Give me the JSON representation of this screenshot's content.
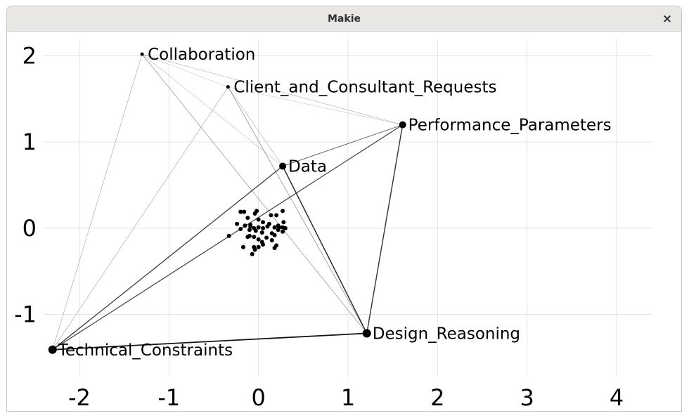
{
  "window": {
    "title": "Makie",
    "close_glyph": "×"
  },
  "chart_data": {
    "type": "scatter",
    "title": "",
    "xlabel": "",
    "ylabel": "",
    "xlim": [
      -2.4,
      4.4
    ],
    "ylim": [
      -1.73,
      2.2
    ],
    "grid": true,
    "x_ticks": [
      -2,
      -1,
      0,
      1,
      2,
      3,
      4
    ],
    "y_ticks": [
      -1,
      0,
      1,
      2
    ],
    "x_tick_labels": [
      "-2",
      "-1",
      "0",
      "1",
      "2",
      "3",
      "4"
    ],
    "y_tick_labels": [
      "-1",
      "0",
      "1",
      "2"
    ],
    "labeled_nodes": [
      {
        "label": "Collaboration",
        "x": -1.3,
        "y": 2.02,
        "size": 2.5
      },
      {
        "label": "Client_and_Consultant_Requests",
        "x": -0.34,
        "y": 1.64,
        "size": 2.5
      },
      {
        "label": "Performance_Parameters",
        "x": 1.61,
        "y": 1.2,
        "size": 5
      },
      {
        "label": "Data",
        "x": 0.27,
        "y": 0.72,
        "size": 5
      },
      {
        "label": "Design_Reasoning",
        "x": 1.21,
        "y": -1.22,
        "size": 6
      },
      {
        "label": "Technical_Constraints",
        "x": -2.3,
        "y": -1.41,
        "size": 6
      }
    ],
    "edges": [
      {
        "from": "Collaboration",
        "to": "Client_and_Consultant_Requests",
        "weight": 0.3
      },
      {
        "from": "Collaboration",
        "to": "Performance_Parameters",
        "weight": 0.4
      },
      {
        "from": "Collaboration",
        "to": "Data",
        "weight": 0.4
      },
      {
        "from": "Collaboration",
        "to": "Design_Reasoning",
        "weight": 0.55
      },
      {
        "from": "Collaboration",
        "to": "Technical_Constraints",
        "weight": 0.45
      },
      {
        "from": "Client_and_Consultant_Requests",
        "to": "Performance_Parameters",
        "weight": 0.3
      },
      {
        "from": "Client_and_Consultant_Requests",
        "to": "Data",
        "weight": 0.45
      },
      {
        "from": "Client_and_Consultant_Requests",
        "to": "Design_Reasoning",
        "weight": 0.6
      },
      {
        "from": "Client_and_Consultant_Requests",
        "to": "Technical_Constraints",
        "weight": 0.5
      },
      {
        "from": "Performance_Parameters",
        "to": "Data",
        "weight": 0.9
      },
      {
        "from": "Performance_Parameters",
        "to": "Design_Reasoning",
        "weight": 1.4
      },
      {
        "from": "Performance_Parameters",
        "to": "Technical_Constraints",
        "weight": 1.2
      },
      {
        "from": "Data",
        "to": "Design_Reasoning",
        "weight": 1.5
      },
      {
        "from": "Data",
        "to": "Technical_Constraints",
        "weight": 1.3
      },
      {
        "from": "Design_Reasoning",
        "to": "Technical_Constraints",
        "weight": 1.8
      }
    ],
    "cluster_points": [
      [
        -0.2,
        0.19
      ],
      [
        -0.16,
        0.19
      ],
      [
        -0.04,
        0.17
      ],
      [
        -0.02,
        0.2
      ],
      [
        0.14,
        0.15
      ],
      [
        0.2,
        0.15
      ],
      [
        0.27,
        0.2
      ],
      [
        -0.12,
        0.12
      ],
      [
        0.0,
        0.1
      ],
      [
        0.05,
        0.07
      ],
      [
        0.12,
        0.05
      ],
      [
        0.28,
        0.07
      ],
      [
        -0.24,
        0.05
      ],
      [
        -0.15,
        0.03
      ],
      [
        -0.09,
        0.02
      ],
      [
        -0.05,
        0.0
      ],
      [
        0.0,
        0.01
      ],
      [
        0.05,
        0.0
      ],
      [
        0.1,
        0.02
      ],
      [
        0.18,
        0.01
      ],
      [
        0.23,
        0.01
      ],
      [
        0.27,
        0.01
      ],
      [
        0.3,
        0.0
      ],
      [
        -0.2,
        -0.01
      ],
      [
        -0.1,
        -0.02
      ],
      [
        -0.03,
        -0.03
      ],
      [
        0.04,
        -0.05
      ],
      [
        0.15,
        -0.06
      ],
      [
        0.22,
        -0.02
      ],
      [
        -0.33,
        -0.09
      ],
      [
        -0.1,
        -0.09
      ],
      [
        -0.05,
        -0.1
      ],
      [
        0.0,
        -0.13
      ],
      [
        0.18,
        -0.08
      ],
      [
        0.27,
        -0.04
      ],
      [
        0.04,
        -0.16
      ],
      [
        0.15,
        -0.14
      ],
      [
        0.05,
        -0.19
      ],
      [
        0.2,
        -0.2
      ],
      [
        -0.17,
        -0.22
      ],
      [
        -0.05,
        -0.22
      ],
      [
        0.0,
        -0.22
      ],
      [
        -0.04,
        -0.25
      ],
      [
        0.18,
        -0.23
      ],
      [
        -0.07,
        -0.3
      ],
      [
        -0.12,
        -0.1
      ],
      [
        0.09,
        -0.11
      ],
      [
        0.22,
        0.03
      ],
      [
        -0.09,
        0.04
      ]
    ]
  }
}
